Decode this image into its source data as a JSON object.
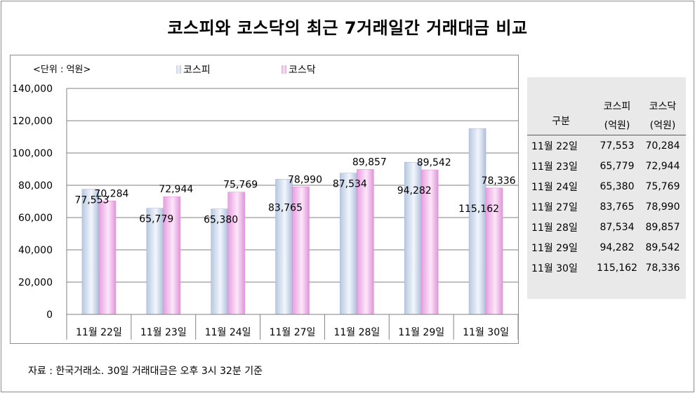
{
  "title": "코스피와 코스닥의 최근 7거래일간 거래대금 비교",
  "unit_label": "<단위 : 억원>",
  "legend": {
    "kospi": "코스피",
    "kosdaq": "코스닥"
  },
  "colors": {
    "kospi": "#c9d6ea",
    "kosdaq": "#f0b6ea",
    "grid": "#808080"
  },
  "table": {
    "header": {
      "col0": "구분",
      "col1_line1": "코스피",
      "col1_line2": "(억원)",
      "col2_line1": "코스닥",
      "col2_line2": "(억원)"
    },
    "rows": [
      {
        "date": "11월 22일",
        "kospi": "77,553",
        "kosdaq": "70,284"
      },
      {
        "date": "11월 23일",
        "kospi": "65,779",
        "kosdaq": "72,944"
      },
      {
        "date": "11월 24일",
        "kospi": "65,380",
        "kosdaq": "75,769"
      },
      {
        "date": "11월 27일",
        "kospi": "83,765",
        "kosdaq": "78,990"
      },
      {
        "date": "11월 28일",
        "kospi": "87,534",
        "kosdaq": "89,857"
      },
      {
        "date": "11월 29일",
        "kospi": "94,282",
        "kosdaq": "89,542"
      },
      {
        "date": "11월 30일",
        "kospi": "115,162",
        "kosdaq": "78,336"
      }
    ]
  },
  "footnote": "자료 : 한국거래소. 30일 거래대금은 오후 3시 32분 기준",
  "chart_data": {
    "type": "bar",
    "title": "코스피와 코스닥의 최근 7거래일간 거래대금 비교",
    "xlabel": "",
    "ylabel": "",
    "unit": "억원",
    "categories": [
      "11월 22일",
      "11월 23일",
      "11월 24일",
      "11월 27일",
      "11월 28일",
      "11월 29일",
      "11월 30일"
    ],
    "series": [
      {
        "name": "코스피",
        "values": [
          77553,
          65779,
          65380,
          83765,
          87534,
          94282,
          115162
        ]
      },
      {
        "name": "코스닥",
        "values": [
          70284,
          72944,
          75769,
          78990,
          89857,
          89542,
          78336
        ]
      }
    ],
    "value_labels": {
      "코스피": [
        "77,553",
        "65,779",
        "65,380",
        "83,765",
        "87,534",
        "94,282",
        "115,162"
      ],
      "코스닥": [
        "70,284",
        "72,944",
        "75,769",
        "78,990",
        "89,857",
        "89,542",
        "78,336"
      ]
    },
    "y_ticks": [
      "0",
      "20,000",
      "40,000",
      "60,000",
      "80,000",
      "100,000",
      "120,000",
      "140,000"
    ],
    "ylim": [
      0,
      140000
    ],
    "grid": true,
    "legend_position": "top"
  }
}
